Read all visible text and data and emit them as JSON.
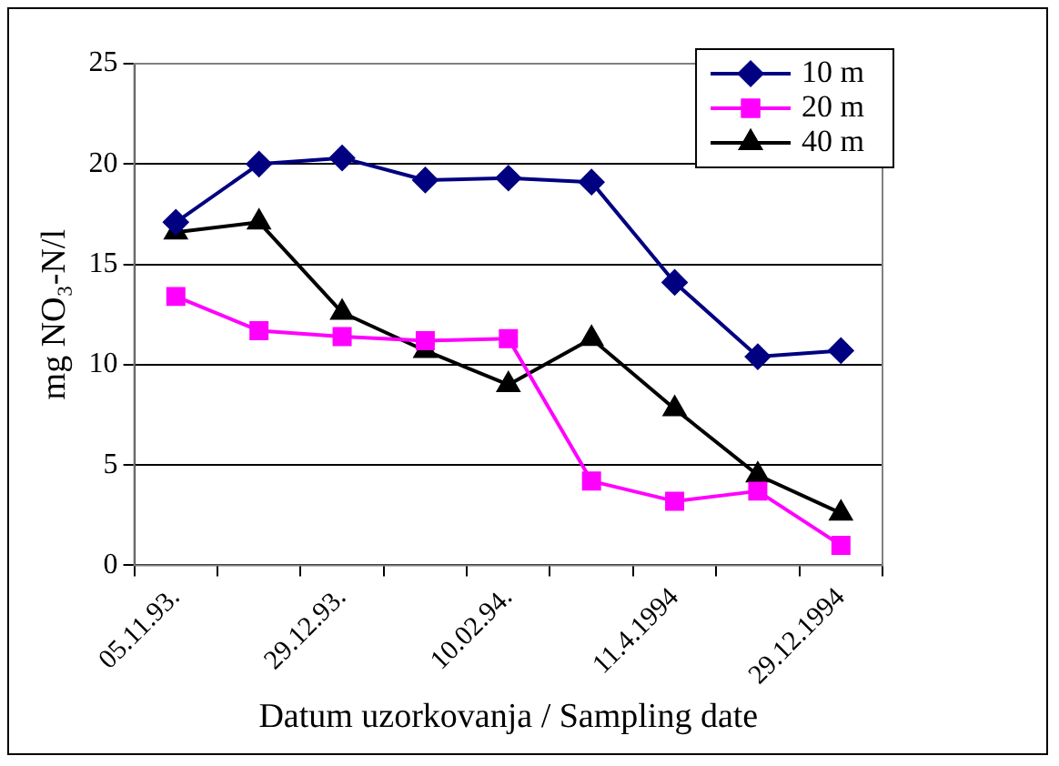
{
  "chart_data": {
    "type": "line",
    "xlabel": "Datum uzorkovanja / Sampling date",
    "ylabel": "mg NO₃-N/l",
    "categories": [
      "05.11.93.",
      null,
      "29.12.93.",
      null,
      "10.02.94.",
      null,
      "11.4.1994",
      null,
      "29.12.1994"
    ],
    "series": [
      {
        "name": "10 m",
        "color": "#000080",
        "marker": "diamond",
        "values": [
          17.1,
          20.0,
          20.3,
          19.2,
          19.3,
          19.1,
          14.1,
          10.4,
          10.7
        ]
      },
      {
        "name": "20 m",
        "color": "#ff00ff",
        "marker": "square",
        "values": [
          13.4,
          11.7,
          11.4,
          11.2,
          11.3,
          4.2,
          3.2,
          3.7,
          1.0
        ]
      },
      {
        "name": "40 m",
        "color": "#000000",
        "marker": "triangle",
        "values": [
          16.6,
          17.1,
          12.6,
          10.7,
          9.0,
          11.3,
          7.8,
          4.5,
          2.6
        ]
      }
    ],
    "ylim": [
      0,
      25
    ],
    "yticks": [
      0,
      5,
      10,
      15,
      20,
      25
    ],
    "grid": "y",
    "legend": "top right",
    "line_style": "solid"
  }
}
